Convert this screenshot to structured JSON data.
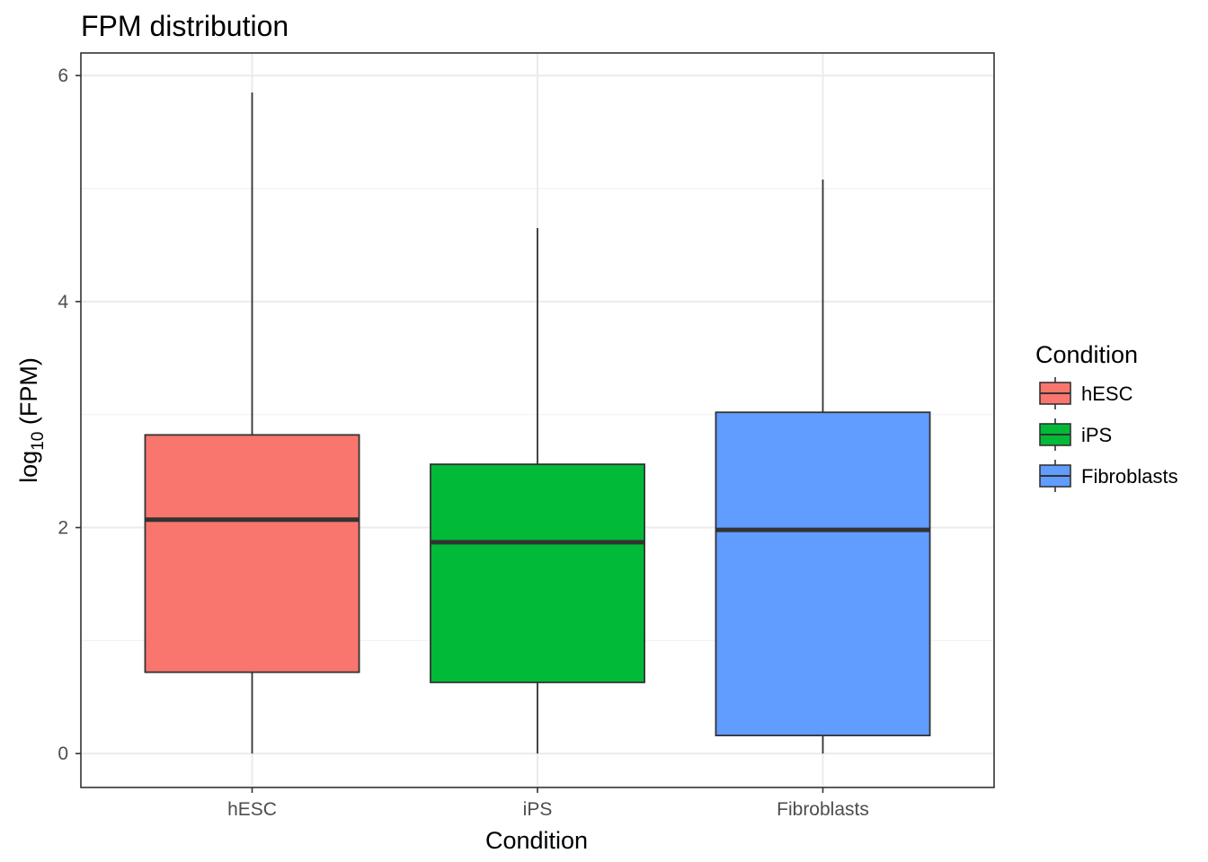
{
  "chart_data": {
    "type": "boxplot",
    "title": "FPM distribution",
    "xlabel": "Condition",
    "ylabel": {
      "base": "log",
      "subscript": "10",
      "suffix": " (FPM)"
    },
    "ylim": [
      -0.3,
      6.2
    ],
    "yticks": [
      0,
      2,
      4,
      6
    ],
    "grid": true,
    "legend": {
      "title": "Condition",
      "position": "right"
    },
    "categories": [
      "hESC",
      "iPS",
      "Fibroblasts"
    ],
    "boxes": [
      {
        "name": "hESC",
        "color": "#F8766D",
        "whisker_low": 0.0,
        "q1": 0.72,
        "median": 2.07,
        "q3": 2.82,
        "whisker_high": 5.85
      },
      {
        "name": "iPS",
        "color": "#00BA38",
        "whisker_low": 0.0,
        "q1": 0.63,
        "median": 1.87,
        "q3": 2.56,
        "whisker_high": 4.65
      },
      {
        "name": "Fibroblasts",
        "color": "#619CFF",
        "whisker_low": 0.0,
        "q1": 0.16,
        "median": 1.98,
        "q3": 3.02,
        "whisker_high": 5.08
      }
    ]
  }
}
